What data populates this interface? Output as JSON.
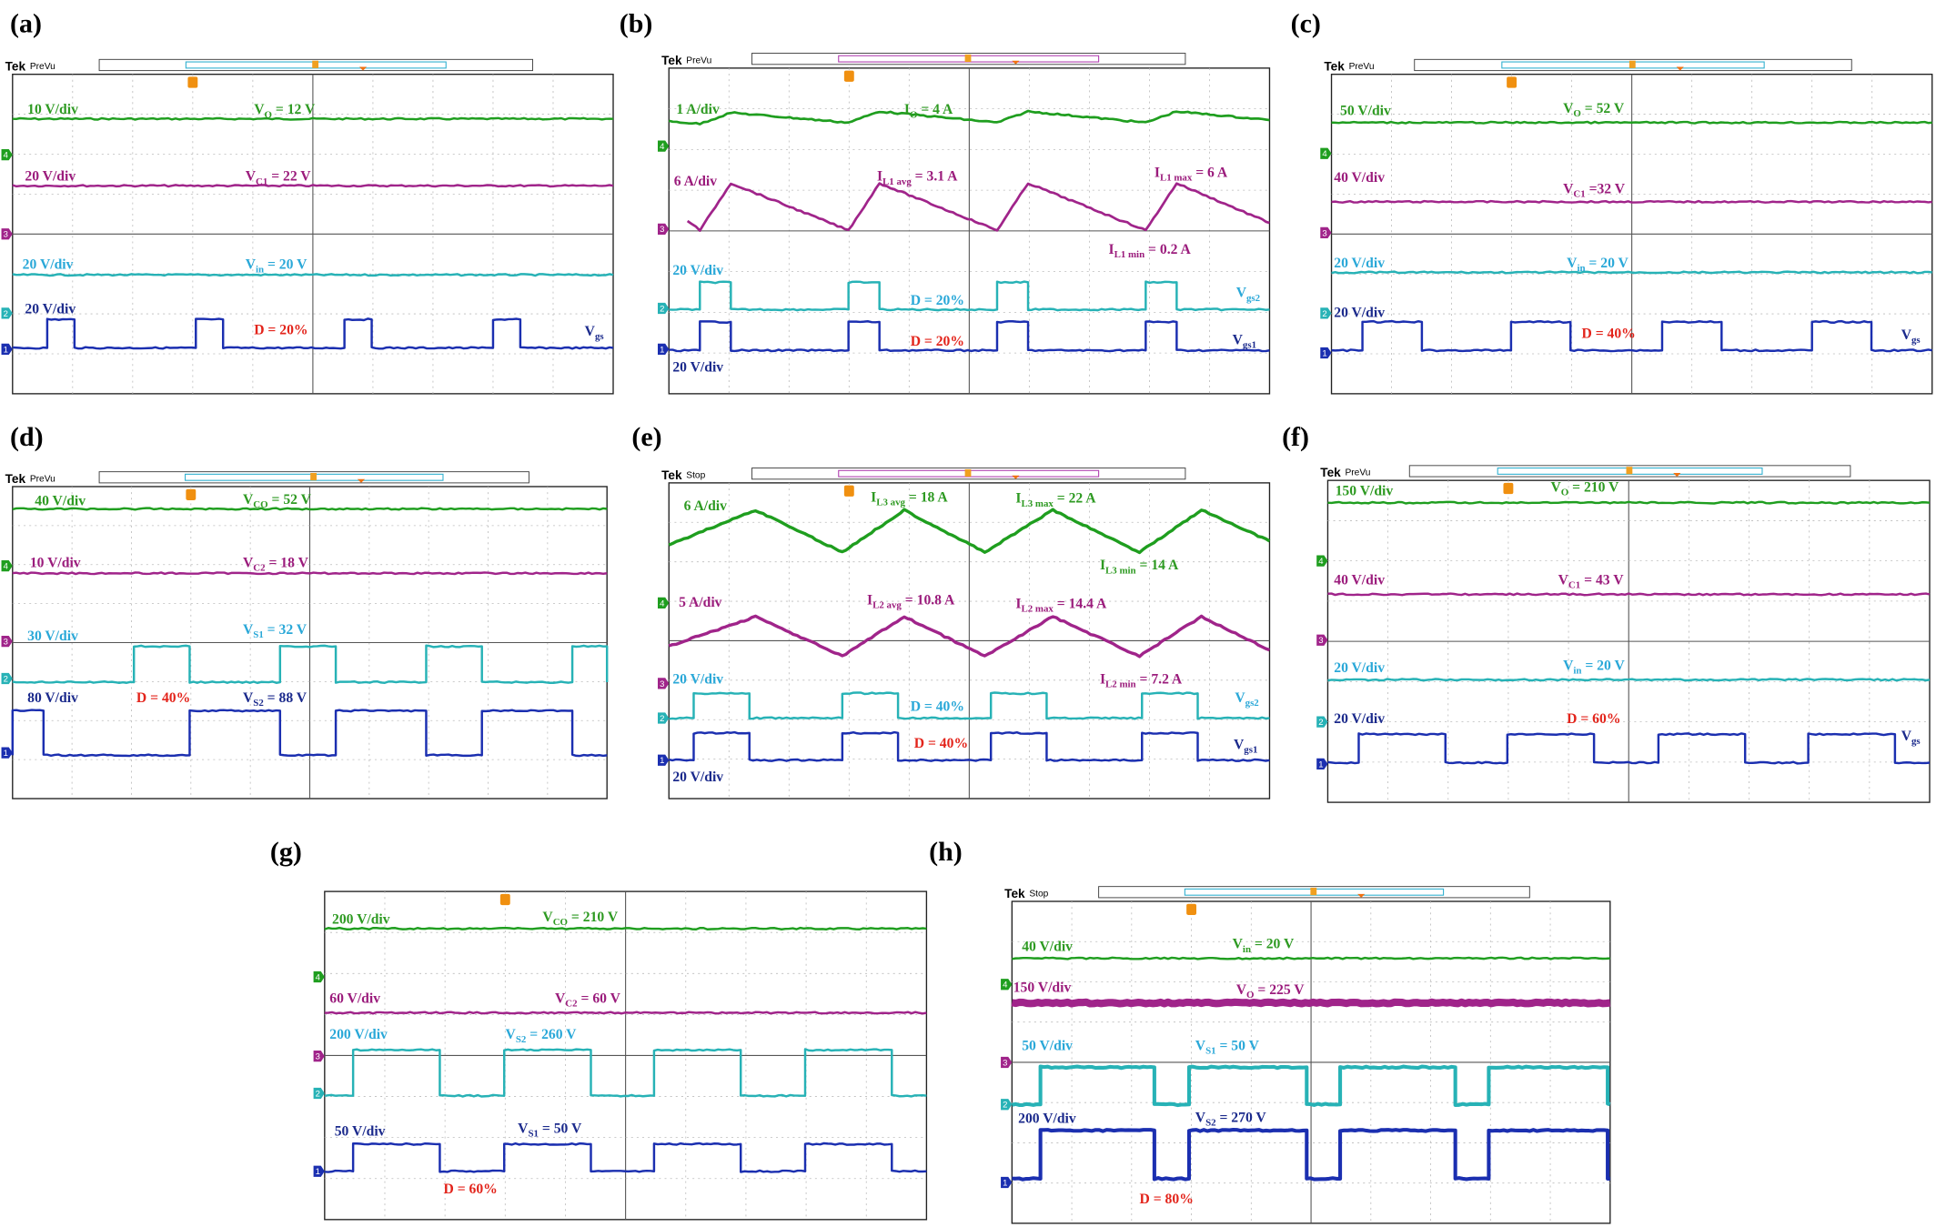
{
  "panels": [
    {
      "label": "(a)",
      "tek": "Tek",
      "mode": "PreVu",
      "channels": [
        "4",
        "3",
        "2",
        "1"
      ],
      "annotations": [
        {
          "text": "10 V/div"
        },
        {
          "text": "V",
          "sub": "O",
          "tail": " = 12 V"
        },
        {
          "text": "20 V/div"
        },
        {
          "text": "V",
          "sub": "C1",
          "tail": " = 22 V"
        },
        {
          "text": "20 V/div"
        },
        {
          "text": "V",
          "sub": "in",
          "tail": " = 20 V"
        },
        {
          "text": "20 V/div"
        },
        {
          "text": "D = 20%"
        },
        {
          "text": "V",
          "sub": "gs"
        }
      ]
    },
    {
      "label": "(b)",
      "tek": "Tek",
      "mode": "PreVu",
      "channels": [
        "4",
        "3",
        "2",
        "1"
      ],
      "annotations": [
        {
          "text": "1 A/div"
        },
        {
          "text": "I",
          "sub": "O",
          "tail": " = 4 A"
        },
        {
          "text": "6 A/div"
        },
        {
          "text": "I",
          "sub": "L1 avg",
          "tail": " = 3.1 A"
        },
        {
          "text": "I",
          "sub": "L1 max",
          "tail": " = 6 A"
        },
        {
          "text": "I",
          "sub": "L1 min",
          "tail": " = 0.2 A"
        },
        {
          "text": "20 V/div"
        },
        {
          "text": "D = 20%"
        },
        {
          "text": "V",
          "sub": "gs2"
        },
        {
          "text": "D = 20%"
        },
        {
          "text": "V",
          "sub": "gs1"
        },
        {
          "text": "20 V/div"
        }
      ]
    },
    {
      "label": "(c)",
      "tek": "Tek",
      "mode": "PreVu",
      "channels": [
        "4",
        "3",
        "2",
        "1"
      ],
      "annotations": [
        {
          "text": "50 V/div"
        },
        {
          "text": "V",
          "sub": "O",
          "tail": " = 52 V"
        },
        {
          "text": "40 V/div"
        },
        {
          "text": "V",
          "sub": "C1",
          "tail": " =32 V"
        },
        {
          "text": "20 V/div"
        },
        {
          "text": "V",
          "sub": "in",
          "tail": " = 20 V"
        },
        {
          "text": "20 V/div"
        },
        {
          "text": "D = 40%"
        },
        {
          "text": "V",
          "sub": "gs"
        }
      ]
    },
    {
      "label": "(d)",
      "tek": "Tek",
      "mode": "PreVu",
      "channels": [
        "4",
        "3",
        "2",
        "1"
      ],
      "annotations": [
        {
          "text": "40 V/div"
        },
        {
          "text": "V",
          "sub": "CO",
          "tail": " = 52 V"
        },
        {
          "text": "10 V/div"
        },
        {
          "text": "V",
          "sub": "C2",
          "tail": " = 18 V"
        },
        {
          "text": "30 V/div"
        },
        {
          "text": "V",
          "sub": "S1",
          "tail": " = 32 V"
        },
        {
          "text": "80 V/div"
        },
        {
          "text": "D = 40%"
        },
        {
          "text": "V",
          "sub": "S2",
          "tail": " = 88 V"
        }
      ]
    },
    {
      "label": "(e)",
      "tek": "Tek",
      "mode": "Stop",
      "channels": [
        "4",
        "3",
        "2",
        "1"
      ],
      "annotations": [
        {
          "text": "6 A/div"
        },
        {
          "text": "I",
          "sub": "L3 avg",
          "tail": " = 18 A"
        },
        {
          "text": "I",
          "sub": "L3 max",
          "tail": " = 22 A"
        },
        {
          "text": "I",
          "sub": "L3 min",
          "tail": " = 14 A"
        },
        {
          "text": "5 A/div"
        },
        {
          "text": "I",
          "sub": "L2 avg",
          "tail": " = 10.8 A"
        },
        {
          "text": "I",
          "sub": "L2 max",
          "tail": " = 14.4 A"
        },
        {
          "text": "I",
          "sub": "L2 min",
          "tail": " = 7.2 A"
        },
        {
          "text": "20 V/div"
        },
        {
          "text": "D = 40%"
        },
        {
          "text": "V",
          "sub": "gs2"
        },
        {
          "text": "D = 40%"
        },
        {
          "text": "V",
          "sub": "gs1"
        },
        {
          "text": "20 V/div"
        }
      ]
    },
    {
      "label": "(f)",
      "tek": "Tek",
      "mode": "PreVu",
      "channels": [
        "4",
        "3",
        "2",
        "1"
      ],
      "annotations": [
        {
          "text": "150 V/div"
        },
        {
          "text": "V",
          "sub": "O",
          "tail": " = 210 V"
        },
        {
          "text": "40 V/div"
        },
        {
          "text": "V",
          "sub": "C1",
          "tail": " = 43 V"
        },
        {
          "text": "20 V/div"
        },
        {
          "text": "V",
          "sub": "in",
          "tail": " = 20 V"
        },
        {
          "text": "20 V/div"
        },
        {
          "text": "D = 60%"
        },
        {
          "text": "V",
          "sub": "gs"
        }
      ]
    },
    {
      "label": "(g)",
      "channels": [
        "4",
        "3",
        "2",
        "1"
      ],
      "annotations": [
        {
          "text": "200 V/div"
        },
        {
          "text": "V",
          "sub": "CO",
          "tail": " = 210 V"
        },
        {
          "text": "60 V/div"
        },
        {
          "text": "V",
          "sub": "C2",
          "tail": " = 60 V"
        },
        {
          "text": "200 V/div"
        },
        {
          "text": "V",
          "sub": "S2",
          "tail": " = 260 V"
        },
        {
          "text": "50 V/div"
        },
        {
          "text": "V",
          "sub": "S1",
          "tail": " = 50 V"
        },
        {
          "text": "D = 60%"
        }
      ]
    },
    {
      "label": "(h)",
      "tek": "Tek",
      "mode": "Stop",
      "channels": [
        "4",
        "3",
        "2",
        "1"
      ],
      "annotations": [
        {
          "text": "40 V/div"
        },
        {
          "text": "V",
          "sub": "in",
          "tail": " = 20 V"
        },
        {
          "text": "150 V/div"
        },
        {
          "text": "V",
          "sub": "O",
          "tail": " = 225 V"
        },
        {
          "text": "50 V/div"
        },
        {
          "text": "V",
          "sub": "S1",
          "tail": " = 50 V"
        },
        {
          "text": "200 V/div"
        },
        {
          "text": "V",
          "sub": "S2",
          "tail": " = 270 V"
        },
        {
          "text": "D = 80%"
        }
      ]
    }
  ]
}
